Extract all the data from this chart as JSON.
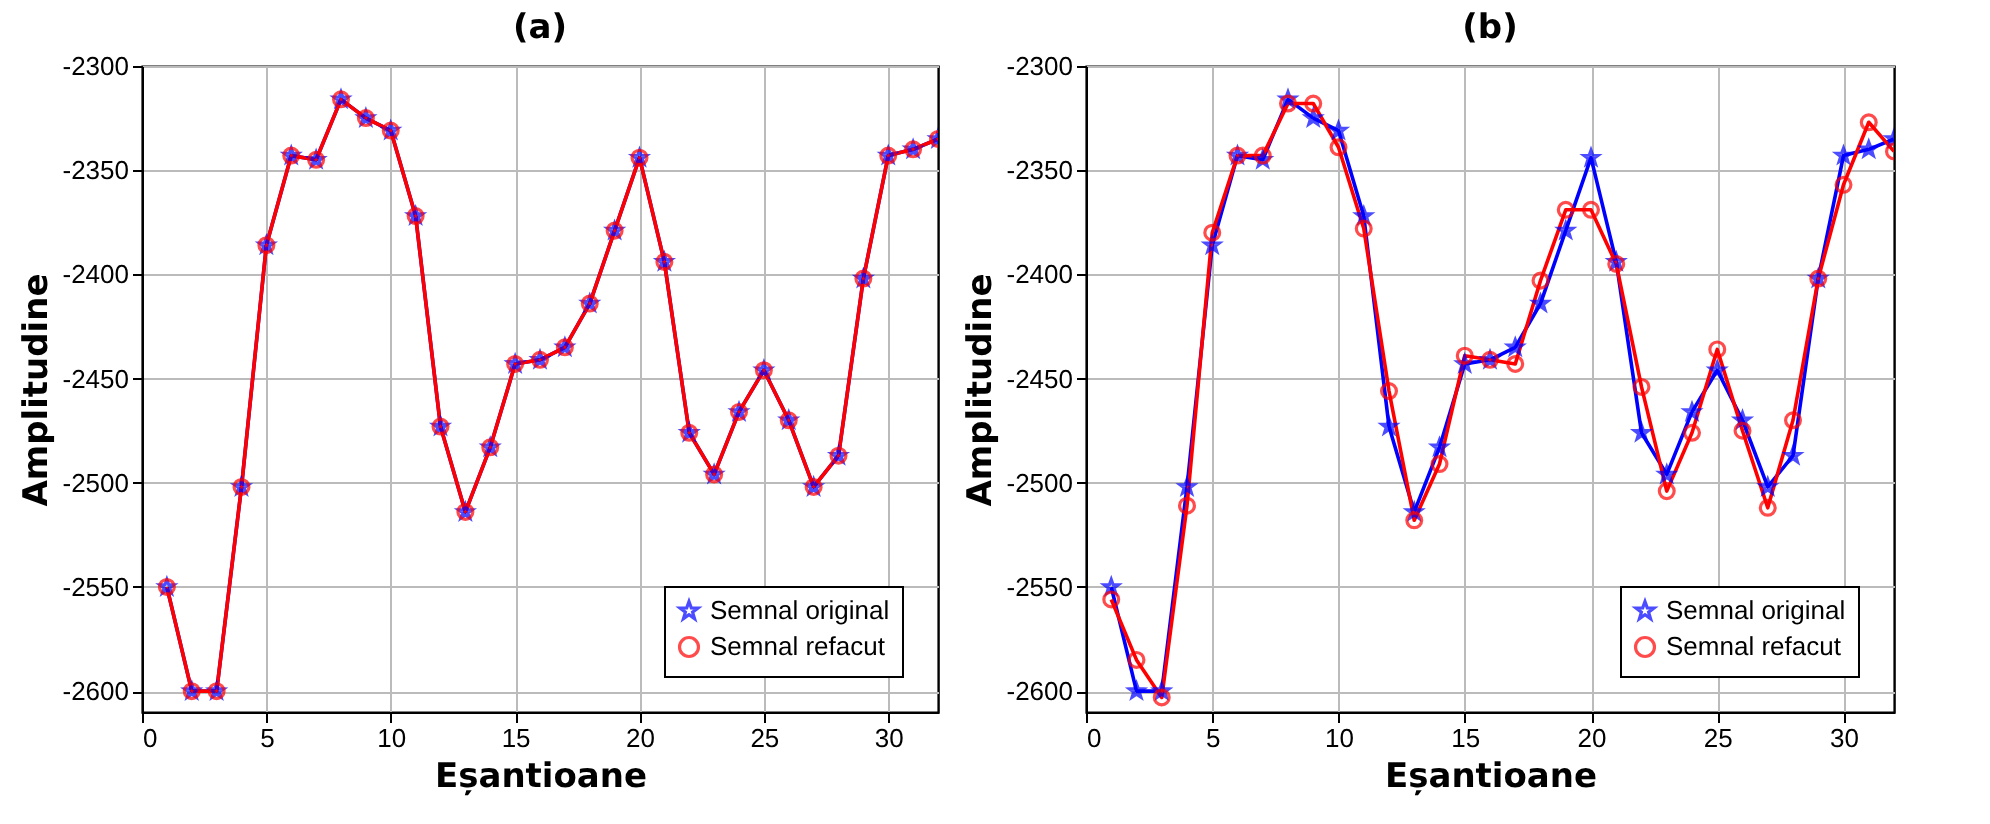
{
  "chart_data": [
    {
      "type": "line",
      "title": "(a)",
      "xlabel": "Eșantioane",
      "ylabel": "Amplitudine",
      "x": [
        1,
        2,
        3,
        4,
        5,
        6,
        7,
        8,
        9,
        10,
        11,
        12,
        13,
        14,
        15,
        16,
        17,
        18,
        19,
        20,
        21,
        22,
        23,
        24,
        25,
        26,
        27,
        28,
        29,
        30,
        31,
        32
      ],
      "xlim": [
        0,
        32
      ],
      "xticks": [
        0,
        5,
        10,
        15,
        20,
        25,
        30
      ],
      "ylim": [
        -2610,
        -2300
      ],
      "yticks": [
        {
          "value": -2600,
          "label": "-2600"
        },
        {
          "value": -2550,
          "label": "-2550"
        },
        {
          "value": -2500,
          "label": "-2500"
        },
        {
          "value": -2450,
          "label": "-2450"
        },
        {
          "value": -2400,
          "label": "-2400"
        },
        {
          "value": -2350,
          "label": "-2350"
        },
        {
          "value": -2300,
          "label": "-2300"
        }
      ],
      "grid": true,
      "legend": "bottom right",
      "line_style": "solid",
      "series": [
        {
          "name": "Semnal original",
          "color": "#0000ff",
          "marker": "star",
          "values": [
            -2550,
            -2600,
            -2600,
            -2502,
            -2386,
            -2343,
            -2345,
            -2316,
            -2325,
            -2331,
            -2372,
            -2473,
            -2514,
            -2483,
            -2443,
            -2441,
            -2435,
            -2414,
            -2379,
            -2344,
            -2394,
            -2476,
            -2496,
            -2466,
            -2446,
            -2470,
            -2502,
            -2487,
            -2402,
            -2343,
            -2340,
            -2335
          ]
        },
        {
          "name": "Semnal refacut",
          "color": "#ff0000",
          "marker": "circle",
          "values": [
            -2550,
            -2600,
            -2600,
            -2502,
            -2386,
            -2343,
            -2345,
            -2316,
            -2325,
            -2331,
            -2372,
            -2473,
            -2514,
            -2483,
            -2443,
            -2441,
            -2435,
            -2414,
            -2379,
            -2344,
            -2394,
            -2476,
            -2496,
            -2466,
            -2446,
            -2470,
            -2502,
            -2487,
            -2402,
            -2343,
            -2340,
            -2335
          ]
        }
      ]
    },
    {
      "type": "line",
      "title": "(b)",
      "xlabel": "Eșantioane",
      "ylabel": "Amplitudine",
      "x": [
        1,
        2,
        3,
        4,
        5,
        6,
        7,
        8,
        9,
        10,
        11,
        12,
        13,
        14,
        15,
        16,
        17,
        18,
        19,
        20,
        21,
        22,
        23,
        24,
        25,
        26,
        27,
        28,
        29,
        30,
        31,
        32
      ],
      "xlim": [
        0,
        32
      ],
      "xticks": [
        0,
        5,
        10,
        15,
        20,
        25,
        30
      ],
      "ylim": [
        -2610,
        -2300
      ],
      "yticks": [
        {
          "value": -2600,
          "label": "-2600"
        },
        {
          "value": -2550,
          "label": "-2550"
        },
        {
          "value": -2500,
          "label": "-2500"
        },
        {
          "value": -2450,
          "label": "-2450"
        },
        {
          "value": -2400,
          "label": "-2400"
        },
        {
          "value": -2350,
          "label": "-2350"
        },
        {
          "value": -2300,
          "label": "-2300"
        }
      ],
      "grid": true,
      "legend": "bottom right",
      "line_style": "solid",
      "series": [
        {
          "name": "Semnal original",
          "color": "#0000ff",
          "marker": "star",
          "values": [
            -2550,
            -2600,
            -2600,
            -2502,
            -2386,
            -2343,
            -2345,
            -2316,
            -2325,
            -2331,
            -2372,
            -2473,
            -2514,
            -2483,
            -2443,
            -2441,
            -2435,
            -2414,
            -2379,
            -2344,
            -2394,
            -2476,
            -2496,
            -2466,
            -2446,
            -2470,
            -2502,
            -2487,
            -2402,
            -2343,
            -2340,
            -2335
          ]
        },
        {
          "name": "Semnal refacut",
          "color": "#ff0000",
          "marker": "circle",
          "values": [
            -2556,
            -2585,
            -2603,
            -2511,
            -2380,
            -2343,
            -2343,
            -2318,
            -2318,
            -2339,
            -2378,
            -2456,
            -2518,
            -2491,
            -2439,
            -2441,
            -2443,
            -2403,
            -2369,
            -2369,
            -2395,
            -2454,
            -2504,
            -2476,
            -2436,
            -2475,
            -2512,
            -2470,
            -2402,
            -2357,
            -2327,
            -2341
          ]
        }
      ]
    }
  ]
}
